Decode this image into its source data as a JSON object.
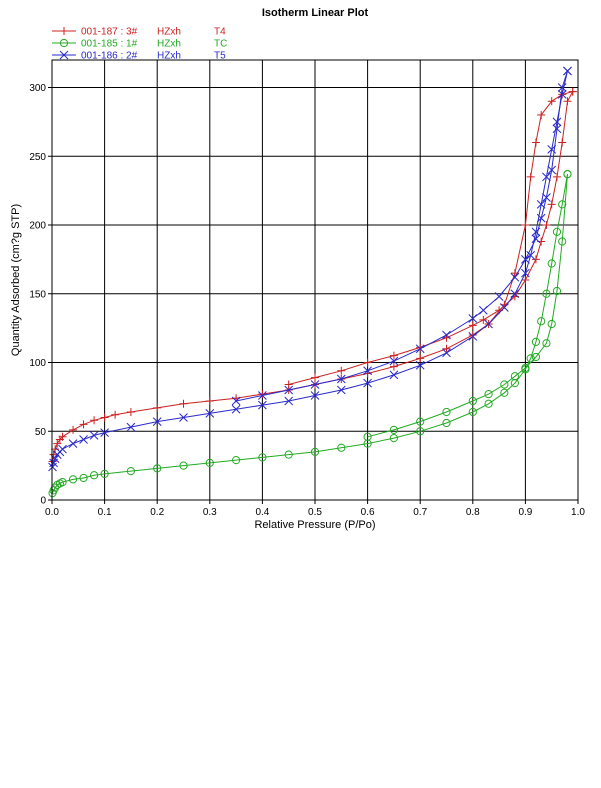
{
  "chart_data": {
    "type": "line",
    "title": "Isotherm Linear Plot",
    "xlabel": "Relative Pressure (P/Po)",
    "ylabel": "Quantity Adsorbed (cm?g STP)",
    "xlim": [
      0,
      1.0
    ],
    "ylim": [
      0,
      320
    ],
    "xticks": [
      "0.0",
      "0.1",
      "0.2",
      "0.3",
      "0.4",
      "0.5",
      "0.6",
      "0.7",
      "0.8",
      "0.9",
      "1.0"
    ],
    "yticks": [
      "0",
      "50",
      "100",
      "150",
      "200",
      "250",
      "300"
    ],
    "grid": true,
    "legend_position": "top-left",
    "legend": [
      {
        "sample": "001-187 : 3#",
        "operator": "HZxh",
        "tag": "T4",
        "color": "#cc2020",
        "marker": "plus"
      },
      {
        "sample": "001-185 : 1#",
        "operator": "HZxh",
        "tag": "TC",
        "color": "#22aa22",
        "marker": "circle"
      },
      {
        "sample": "001-186 : 2#",
        "operator": "HZxh",
        "tag": "T5",
        "color": "#2a2acc",
        "marker": "x"
      }
    ],
    "series": [
      {
        "name": "001-187 : 3#",
        "color": "#cc2020",
        "marker": "plus",
        "adsorption": [
          [
            0.001,
            28
          ],
          [
            0.003,
            33
          ],
          [
            0.006,
            37
          ],
          [
            0.01,
            41
          ],
          [
            0.015,
            44
          ],
          [
            0.02,
            46
          ],
          [
            0.04,
            51
          ],
          [
            0.06,
            55
          ],
          [
            0.08,
            58
          ],
          [
            0.1,
            60
          ],
          [
            0.12,
            62
          ],
          [
            0.15,
            64
          ],
          [
            0.2,
            67
          ],
          [
            0.25,
            70
          ],
          [
            0.3,
            72
          ],
          [
            0.35,
            74
          ],
          [
            0.4,
            77
          ],
          [
            0.45,
            80
          ],
          [
            0.5,
            84
          ],
          [
            0.55,
            88
          ],
          [
            0.6,
            92
          ],
          [
            0.65,
            97
          ],
          [
            0.7,
            103
          ],
          [
            0.75,
            110
          ],
          [
            0.8,
            120
          ],
          [
            0.83,
            128
          ],
          [
            0.86,
            142
          ],
          [
            0.88,
            165
          ],
          [
            0.9,
            200
          ],
          [
            0.91,
            235
          ],
          [
            0.92,
            260
          ],
          [
            0.93,
            280
          ],
          [
            0.95,
            290
          ],
          [
            0.97,
            295
          ],
          [
            0.99,
            297
          ]
        ],
        "desorption": [
          [
            0.99,
            297
          ],
          [
            0.98,
            290
          ],
          [
            0.97,
            260
          ],
          [
            0.96,
            235
          ],
          [
            0.95,
            215
          ],
          [
            0.94,
            200
          ],
          [
            0.93,
            188
          ],
          [
            0.92,
            175
          ],
          [
            0.9,
            160
          ],
          [
            0.88,
            148
          ],
          [
            0.85,
            138
          ],
          [
            0.82,
            131
          ],
          [
            0.8,
            127
          ],
          [
            0.75,
            118
          ],
          [
            0.7,
            111
          ],
          [
            0.65,
            105
          ],
          [
            0.6,
            100
          ],
          [
            0.55,
            94
          ],
          [
            0.5,
            89
          ],
          [
            0.45,
            84
          ]
        ]
      },
      {
        "name": "001-185 : 1#",
        "color": "#22aa22",
        "marker": "circle",
        "adsorption": [
          [
            0.001,
            5
          ],
          [
            0.003,
            7
          ],
          [
            0.006,
            9
          ],
          [
            0.01,
            11
          ],
          [
            0.015,
            12
          ],
          [
            0.02,
            13
          ],
          [
            0.04,
            15
          ],
          [
            0.06,
            16
          ],
          [
            0.08,
            18
          ],
          [
            0.1,
            19
          ],
          [
            0.15,
            21
          ],
          [
            0.2,
            23
          ],
          [
            0.25,
            25
          ],
          [
            0.3,
            27
          ],
          [
            0.35,
            29
          ],
          [
            0.4,
            31
          ],
          [
            0.45,
            33
          ],
          [
            0.5,
            35
          ],
          [
            0.55,
            38
          ],
          [
            0.6,
            41
          ],
          [
            0.65,
            45
          ],
          [
            0.7,
            50
          ],
          [
            0.75,
            56
          ],
          [
            0.8,
            64
          ],
          [
            0.83,
            70
          ],
          [
            0.86,
            78
          ],
          [
            0.88,
            85
          ],
          [
            0.9,
            95
          ],
          [
            0.91,
            103
          ],
          [
            0.92,
            115
          ],
          [
            0.93,
            130
          ],
          [
            0.94,
            150
          ],
          [
            0.95,
            172
          ],
          [
            0.96,
            195
          ],
          [
            0.97,
            215
          ],
          [
            0.98,
            237
          ]
        ],
        "desorption": [
          [
            0.98,
            237
          ],
          [
            0.97,
            188
          ],
          [
            0.96,
            152
          ],
          [
            0.95,
            128
          ],
          [
            0.94,
            114
          ],
          [
            0.92,
            104
          ],
          [
            0.9,
            96
          ],
          [
            0.88,
            90
          ],
          [
            0.86,
            84
          ],
          [
            0.83,
            77
          ],
          [
            0.8,
            72
          ],
          [
            0.75,
            64
          ],
          [
            0.7,
            57
          ],
          [
            0.65,
            51
          ],
          [
            0.6,
            46
          ]
        ]
      },
      {
        "name": "001-186 : 2#",
        "color": "#2a2acc",
        "marker": "x",
        "adsorption": [
          [
            0.001,
            24
          ],
          [
            0.003,
            27
          ],
          [
            0.006,
            30
          ],
          [
            0.01,
            33
          ],
          [
            0.015,
            35
          ],
          [
            0.02,
            37
          ],
          [
            0.04,
            41
          ],
          [
            0.06,
            44
          ],
          [
            0.08,
            47
          ],
          [
            0.1,
            49
          ],
          [
            0.15,
            53
          ],
          [
            0.2,
            57
          ],
          [
            0.25,
            60
          ],
          [
            0.3,
            63
          ],
          [
            0.35,
            66
          ],
          [
            0.4,
            69
          ],
          [
            0.45,
            72
          ],
          [
            0.5,
            76
          ],
          [
            0.55,
            80
          ],
          [
            0.6,
            85
          ],
          [
            0.65,
            91
          ],
          [
            0.7,
            98
          ],
          [
            0.75,
            107
          ],
          [
            0.8,
            119
          ],
          [
            0.83,
            128
          ],
          [
            0.86,
            140
          ],
          [
            0.88,
            150
          ],
          [
            0.9,
            165
          ],
          [
            0.91,
            178
          ],
          [
            0.92,
            195
          ],
          [
            0.93,
            215
          ],
          [
            0.94,
            235
          ],
          [
            0.95,
            255
          ],
          [
            0.96,
            275
          ],
          [
            0.97,
            295
          ],
          [
            0.98,
            312
          ]
        ],
        "desorption": [
          [
            0.98,
            312
          ],
          [
            0.97,
            300
          ],
          [
            0.96,
            270
          ],
          [
            0.95,
            240
          ],
          [
            0.94,
            220
          ],
          [
            0.93,
            205
          ],
          [
            0.92,
            190
          ],
          [
            0.9,
            175
          ],
          [
            0.88,
            162
          ],
          [
            0.85,
            148
          ],
          [
            0.82,
            138
          ],
          [
            0.8,
            132
          ],
          [
            0.75,
            120
          ],
          [
            0.7,
            110
          ],
          [
            0.65,
            101
          ],
          [
            0.6,
            94
          ],
          [
            0.55,
            88
          ],
          [
            0.5,
            84
          ],
          [
            0.45,
            80
          ],
          [
            0.4,
            76
          ],
          [
            0.35,
            72
          ]
        ]
      }
    ]
  }
}
